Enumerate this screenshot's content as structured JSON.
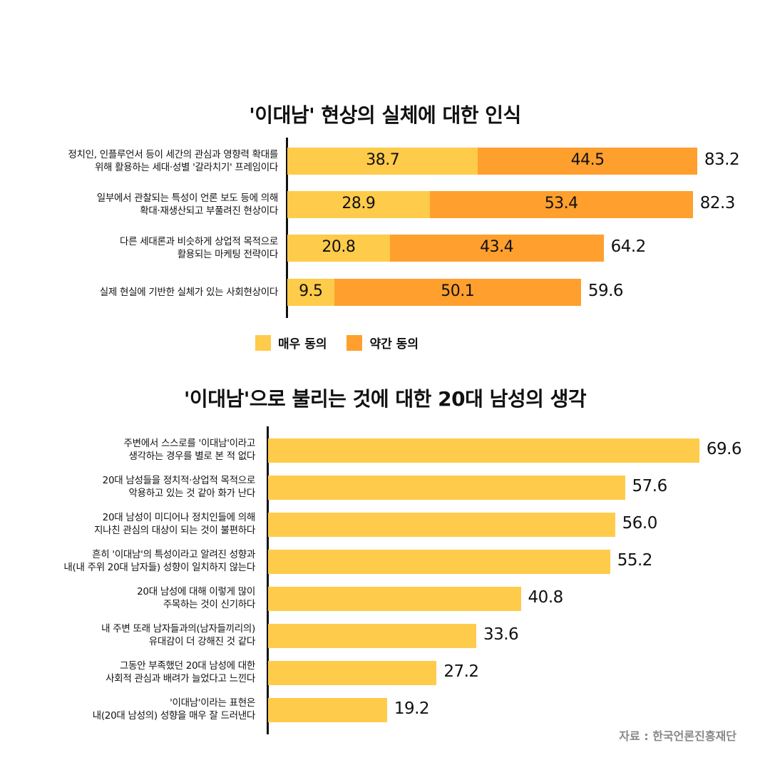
{
  "chart_data": [
    {
      "type": "bar",
      "orientation": "horizontal",
      "stacked": true,
      "title": "'이대남' 현상의 실체에 대한 인식",
      "categories": [
        "정치인, 인플루언서 등이 세간의 관심과 영향력 확대를\n위해 활용하는 세대·성별 '갈라치기' 프레임이다",
        "일부에서 관찰되는 특성이 언론 보도 등에 의해\n확대·재생산되고 부풀려진 현상이다",
        "다른 세대론과 비슷하게 상업적 목적으로\n활용되는 마케팅 전략이다",
        "실제 현실에 기반한 실체가 있는 사회현상이다"
      ],
      "series": [
        {
          "name": "매우 동의",
          "color": "#FFCB4A",
          "values": [
            38.7,
            28.9,
            20.8,
            9.5
          ]
        },
        {
          "name": "약간 동의",
          "color": "#FF9F2E",
          "values": [
            44.5,
            53.4,
            43.4,
            50.1
          ]
        }
      ],
      "totals": [
        "83.2",
        "82.3",
        "64.2",
        "59.6"
      ],
      "legend": "bottom"
    },
    {
      "type": "bar",
      "orientation": "horizontal",
      "title": "'이대남'으로 불리는 것에 대한 20대 남성의 생각",
      "categories": [
        "주변에서 스스로를 '이대남'이라고\n생각하는 경우를 별로 본 적 없다",
        "20대 남성들을 정치적·상업적 목적으로\n악용하고 있는 것 같아 화가 난다",
        "20대 남성이 미디어나 정치인들에 의해\n지나친 관심의 대상이 되는 것이 불편하다",
        "흔히 '이대남'의 특성이라고 알려진 성향과\n내(내 주위 20대 남자들) 성향이 일치하지 않는다",
        "20대 남성에 대해 이렇게 많이\n주목하는 것이 신기하다",
        "내 주변 또래 남자들과의(남자들끼리의)\n유대감이 더 강해진 것 같다",
        "그동안 부족했던 20대 남성에 대한\n사회적 관심과 배려가 늘었다고 느낀다",
        "'이대남'이라는 표현은\n내(20대 남성의) 성향을 매우 잘 드러낸다"
      ],
      "values": [
        69.6,
        57.6,
        56.0,
        55.2,
        40.8,
        33.6,
        27.2,
        19.2
      ],
      "labels": [
        "69.6",
        "57.6",
        "56.0",
        "55.2",
        "40.8",
        "33.6",
        "27.2",
        "19.2"
      ],
      "color": "#FFCB4A"
    }
  ],
  "source": "자료 : 한국언론진흥재단"
}
